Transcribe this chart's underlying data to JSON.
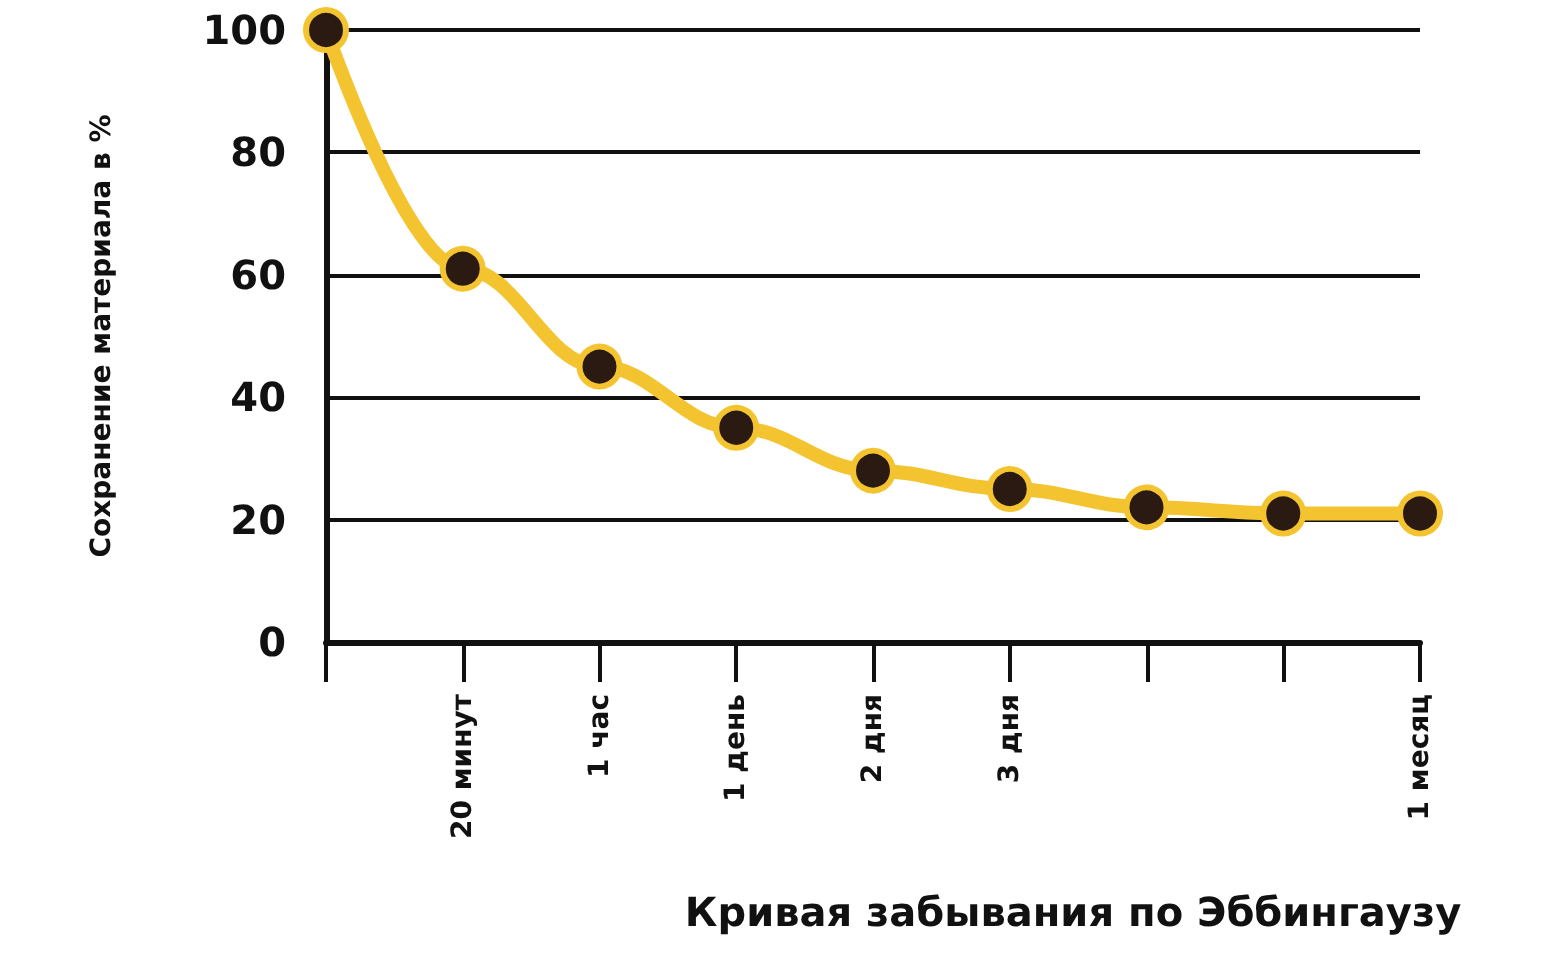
{
  "chart_data": {
    "type": "line",
    "xlabel": "Кривая забывания по Эббингаузу",
    "ylabel": "Сохранение материала в %",
    "categories": [
      null,
      "20 минут",
      "1 час",
      "1 день",
      "2 дня",
      "3 дня",
      null,
      null,
      "1 месяц"
    ],
    "series": [
      {
        "color": "#f4c430",
        "values": [
          100,
          61,
          45,
          35,
          28,
          25,
          22,
          21,
          21
        ]
      }
    ],
    "ylim": [
      0,
      100
    ],
    "yticks": [
      0,
      20,
      40,
      60,
      80,
      100
    ],
    "grid": "y",
    "marker": "circle",
    "line_style": "solid"
  }
}
